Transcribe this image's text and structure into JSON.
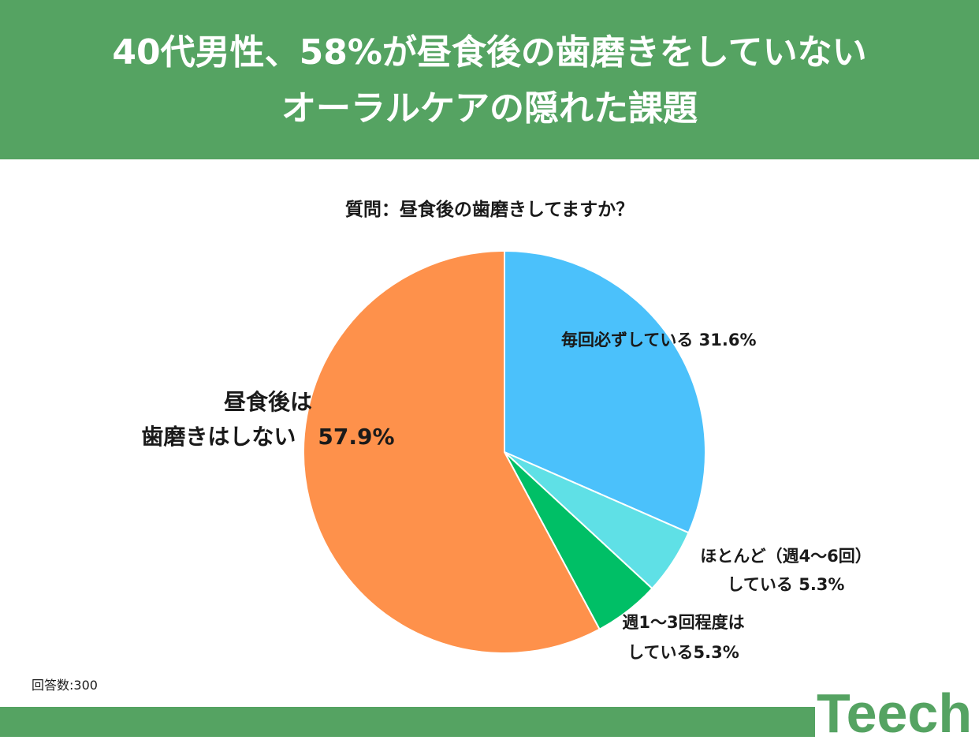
{
  "header": {
    "title_line1": "40代男性、58%が昼食後の歯磨きをしていない",
    "title_line2": "オーラルケアの隠れた課題"
  },
  "colors": {
    "header_bg": "#55a362",
    "slice_every_time": "#4bc1fb",
    "slice_4_6_per_week": "#5fe0e6",
    "slice_1_3_per_week": "#00bf66",
    "slice_no_brushing": "#fe914b"
  },
  "chart_data": {
    "type": "pie",
    "title": "質問：昼食後の歯磨きしてますか？",
    "slices": [
      {
        "label_lines": [
          "毎回必ずしている 31.6%"
        ],
        "value": 31.6
      },
      {
        "label_lines": [
          "ほとんど（週4～6回）",
          "している 5.3%"
        ],
        "value": 5.3
      },
      {
        "label_lines": [
          "週1～3回程度は",
          "している5.3%"
        ],
        "value": 5.3
      },
      {
        "label_lines": [
          "昼食後は",
          "歯磨きはしない　57.9%"
        ],
        "value": 57.9
      }
    ]
  },
  "footnote": "回答数:300",
  "logo": {
    "text": "Teech",
    "icon": "teech-logo"
  }
}
